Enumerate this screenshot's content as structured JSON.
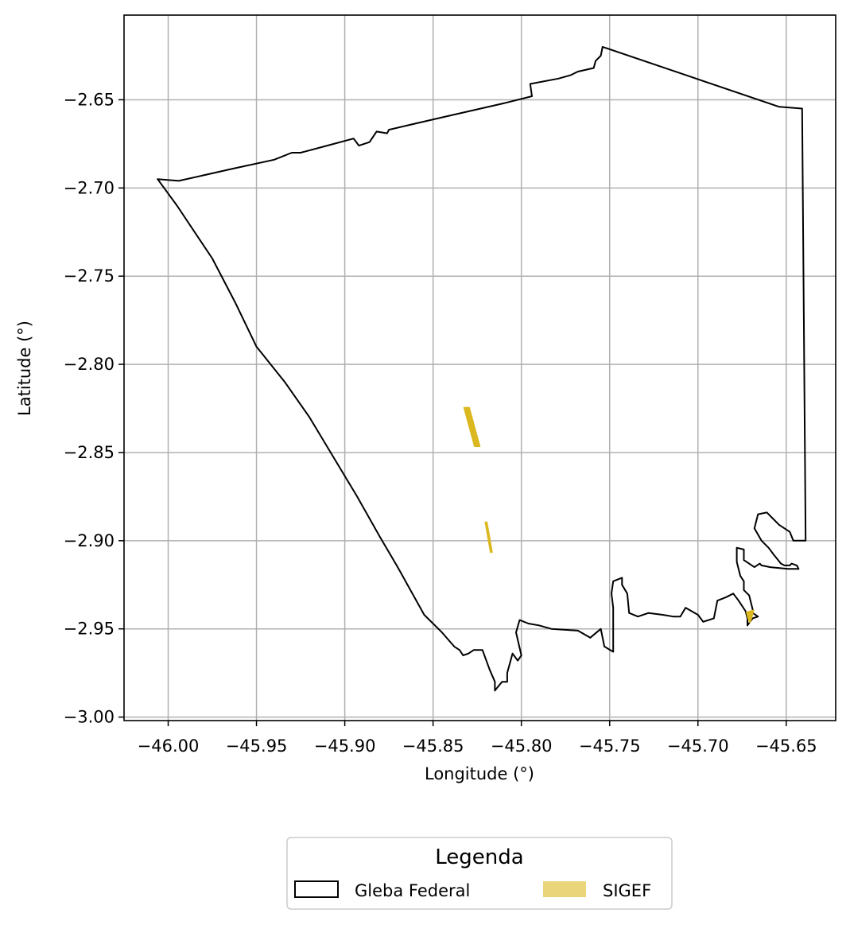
{
  "chart_data": {
    "type": "map",
    "xlabel": "Longitude (°)",
    "ylabel": "Latitude (°)",
    "xlim": [
      -46.025,
      -45.622
    ],
    "ylim": [
      -3.002,
      -2.602
    ],
    "x_ticks": [
      -46.0,
      -45.95,
      -45.9,
      -45.85,
      -45.8,
      -45.75,
      -45.7,
      -45.65
    ],
    "x_tick_labels": [
      "−46.00",
      "−45.95",
      "−45.90",
      "−45.85",
      "−45.80",
      "−45.75",
      "−45.70",
      "−45.65"
    ],
    "y_ticks": [
      -2.65,
      -2.7,
      -2.75,
      -2.8,
      -2.85,
      -2.9,
      -2.95,
      -3.0
    ],
    "y_tick_labels": [
      "−2.65",
      "−2.70",
      "−2.75",
      "−2.80",
      "−2.85",
      "−2.90",
      "−2.95",
      "−3.00"
    ],
    "grid": true,
    "legend": {
      "title": "Legenda",
      "placement": "bottom-center",
      "entries": [
        "Gleba Federal",
        "SIGEF"
      ]
    },
    "colors": {
      "gleba_edge": "#000000",
      "sigef_fill": "#dbb820",
      "sigef_legend": "#ebd57a",
      "grid": "#b0b0b0"
    },
    "layers": [
      {
        "name": "Gleba Federal",
        "style": "outline",
        "polygons": [
          [
            [
              -46.006,
              -2.695
            ],
            [
              -45.994,
              -2.696
            ],
            [
              -45.963,
              -2.689
            ],
            [
              -45.94,
              -2.684
            ],
            [
              -45.93,
              -2.68
            ],
            [
              -45.925,
              -2.68
            ],
            [
              -45.91,
              -2.676
            ],
            [
              -45.895,
              -2.672
            ],
            [
              -45.892,
              -2.676
            ],
            [
              -45.886,
              -2.674
            ],
            [
              -45.882,
              -2.668
            ],
            [
              -45.876,
              -2.669
            ],
            [
              -45.875,
              -2.667
            ],
            [
              -45.845,
              -2.66
            ],
            [
              -45.81,
              -2.652
            ],
            [
              -45.794,
              -2.648
            ],
            [
              -45.795,
              -2.641
            ],
            [
              -45.779,
              -2.638
            ],
            [
              -45.772,
              -2.636
            ],
            [
              -45.768,
              -2.634
            ],
            [
              -45.759,
              -2.632
            ],
            [
              -45.758,
              -2.628
            ],
            [
              -45.755,
              -2.625
            ],
            [
              -45.754,
              -2.62
            ],
            [
              -45.704,
              -2.637
            ],
            [
              -45.654,
              -2.654
            ],
            [
              -45.641,
              -2.655
            ],
            [
              -45.639,
              -2.9
            ],
            [
              -45.643,
              -2.9
            ],
            [
              -45.646,
              -2.9
            ],
            [
              -45.648,
              -2.895
            ],
            [
              -45.654,
              -2.891
            ],
            [
              -45.658,
              -2.887
            ],
            [
              -45.661,
              -2.884
            ],
            [
              -45.666,
              -2.885
            ],
            [
              -45.668,
              -2.893
            ],
            [
              -45.664,
              -2.9
            ],
            [
              -45.66,
              -2.904
            ],
            [
              -45.657,
              -2.908
            ],
            [
              -45.653,
              -2.913
            ],
            [
              -45.651,
              -2.914
            ],
            [
              -45.648,
              -2.914
            ],
            [
              -45.647,
              -2.913
            ],
            [
              -45.644,
              -2.914
            ],
            [
              -45.643,
              -2.916
            ],
            [
              -45.649,
              -2.916
            ],
            [
              -45.659,
              -2.915
            ],
            [
              -45.664,
              -2.914
            ],
            [
              -45.665,
              -2.913
            ],
            [
              -45.668,
              -2.915
            ],
            [
              -45.674,
              -2.911
            ],
            [
              -45.674,
              -2.905
            ],
            [
              -45.678,
              -2.904
            ],
            [
              -45.678,
              -2.912
            ],
            [
              -45.676,
              -2.92
            ],
            [
              -45.674,
              -2.923
            ],
            [
              -45.674,
              -2.928
            ],
            [
              -45.671,
              -2.931
            ],
            [
              -45.669,
              -2.939
            ],
            [
              -45.669,
              -2.941
            ],
            [
              -45.666,
              -2.943
            ],
            [
              -45.669,
              -2.944
            ],
            [
              -45.672,
              -2.948
            ],
            [
              -45.672,
              -2.944
            ],
            [
              -45.673,
              -2.94
            ],
            [
              -45.677,
              -2.934
            ],
            [
              -45.68,
              -2.93
            ],
            [
              -45.684,
              -2.932
            ],
            [
              -45.689,
              -2.934
            ],
            [
              -45.691,
              -2.944
            ],
            [
              -45.697,
              -2.946
            ],
            [
              -45.7,
              -2.942
            ],
            [
              -45.707,
              -2.938
            ],
            [
              -45.71,
              -2.943
            ],
            [
              -45.714,
              -2.943
            ],
            [
              -45.72,
              -2.942
            ],
            [
              -45.728,
              -2.941
            ],
            [
              -45.734,
              -2.943
            ],
            [
              -45.739,
              -2.941
            ],
            [
              -45.74,
              -2.93
            ],
            [
              -45.743,
              -2.925
            ],
            [
              -45.743,
              -2.921
            ],
            [
              -45.748,
              -2.923
            ],
            [
              -45.749,
              -2.93
            ],
            [
              -45.748,
              -2.938
            ],
            [
              -45.748,
              -2.948
            ],
            [
              -45.748,
              -2.963
            ],
            [
              -45.753,
              -2.96
            ],
            [
              -45.755,
              -2.95
            ],
            [
              -45.761,
              -2.955
            ],
            [
              -45.768,
              -2.951
            ],
            [
              -45.783,
              -2.95
            ],
            [
              -45.79,
              -2.948
            ],
            [
              -45.796,
              -2.947
            ],
            [
              -45.801,
              -2.945
            ],
            [
              -45.803,
              -2.952
            ],
            [
              -45.8,
              -2.965
            ],
            [
              -45.802,
              -2.968
            ],
            [
              -45.805,
              -2.964
            ],
            [
              -45.808,
              -2.975
            ],
            [
              -45.808,
              -2.98
            ],
            [
              -45.811,
              -2.98
            ],
            [
              -45.815,
              -2.985
            ],
            [
              -45.815,
              -2.98
            ],
            [
              -45.818,
              -2.973
            ],
            [
              -45.822,
              -2.962
            ],
            [
              -45.827,
              -2.962
            ],
            [
              -45.83,
              -2.964
            ],
            [
              -45.833,
              -2.965
            ],
            [
              -45.835,
              -2.962
            ],
            [
              -45.838,
              -2.96
            ],
            [
              -45.845,
              -2.952
            ],
            [
              -45.855,
              -2.942
            ],
            [
              -45.87,
              -2.915
            ],
            [
              -45.88,
              -2.898
            ],
            [
              -45.893,
              -2.875
            ],
            [
              -45.905,
              -2.855
            ],
            [
              -45.92,
              -2.83
            ],
            [
              -45.934,
              -2.81
            ],
            [
              -45.95,
              -2.79
            ],
            [
              -45.962,
              -2.765
            ],
            [
              -45.975,
              -2.74
            ],
            [
              -45.985,
              -2.725
            ],
            [
              -45.995,
              -2.71
            ],
            [
              -46.006,
              -2.695
            ]
          ]
        ]
      },
      {
        "name": "SIGEF",
        "style": "filled",
        "polygons": [
          [
            [
              -45.8325,
              -2.8245
            ],
            [
              -45.8295,
              -2.8245
            ],
            [
              -45.8235,
              -2.8465
            ],
            [
              -45.8265,
              -2.8465
            ]
          ],
          [
            [
              -45.8205,
              -2.8895
            ],
            [
              -45.8195,
              -2.8895
            ],
            [
              -45.8165,
              -2.9065
            ],
            [
              -45.8175,
              -2.9065
            ]
          ],
          [
            [
              -45.6725,
              -2.9405
            ],
            [
              -45.6685,
              -2.9395
            ],
            [
              -45.6695,
              -2.9435
            ],
            [
              -45.6705,
              -2.9465
            ],
            [
              -45.6715,
              -2.9445
            ]
          ]
        ]
      }
    ]
  }
}
